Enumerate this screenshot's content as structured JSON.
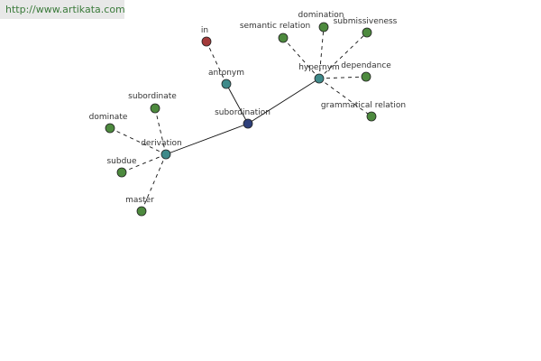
{
  "watermark": "http://www.artikata.com",
  "nodes": [
    {
      "label": "subordination"
    },
    {
      "label": "derivation"
    },
    {
      "label": "antonym"
    },
    {
      "label": "hypernym"
    },
    {
      "label": "in"
    },
    {
      "label": "subordinate"
    },
    {
      "label": "dominate"
    },
    {
      "label": "subdue"
    },
    {
      "label": "master"
    },
    {
      "label": "semantic relation"
    },
    {
      "label": "domination"
    },
    {
      "label": "submissiveness"
    },
    {
      "label": "dependance"
    },
    {
      "label": "grammatical relation"
    }
  ]
}
